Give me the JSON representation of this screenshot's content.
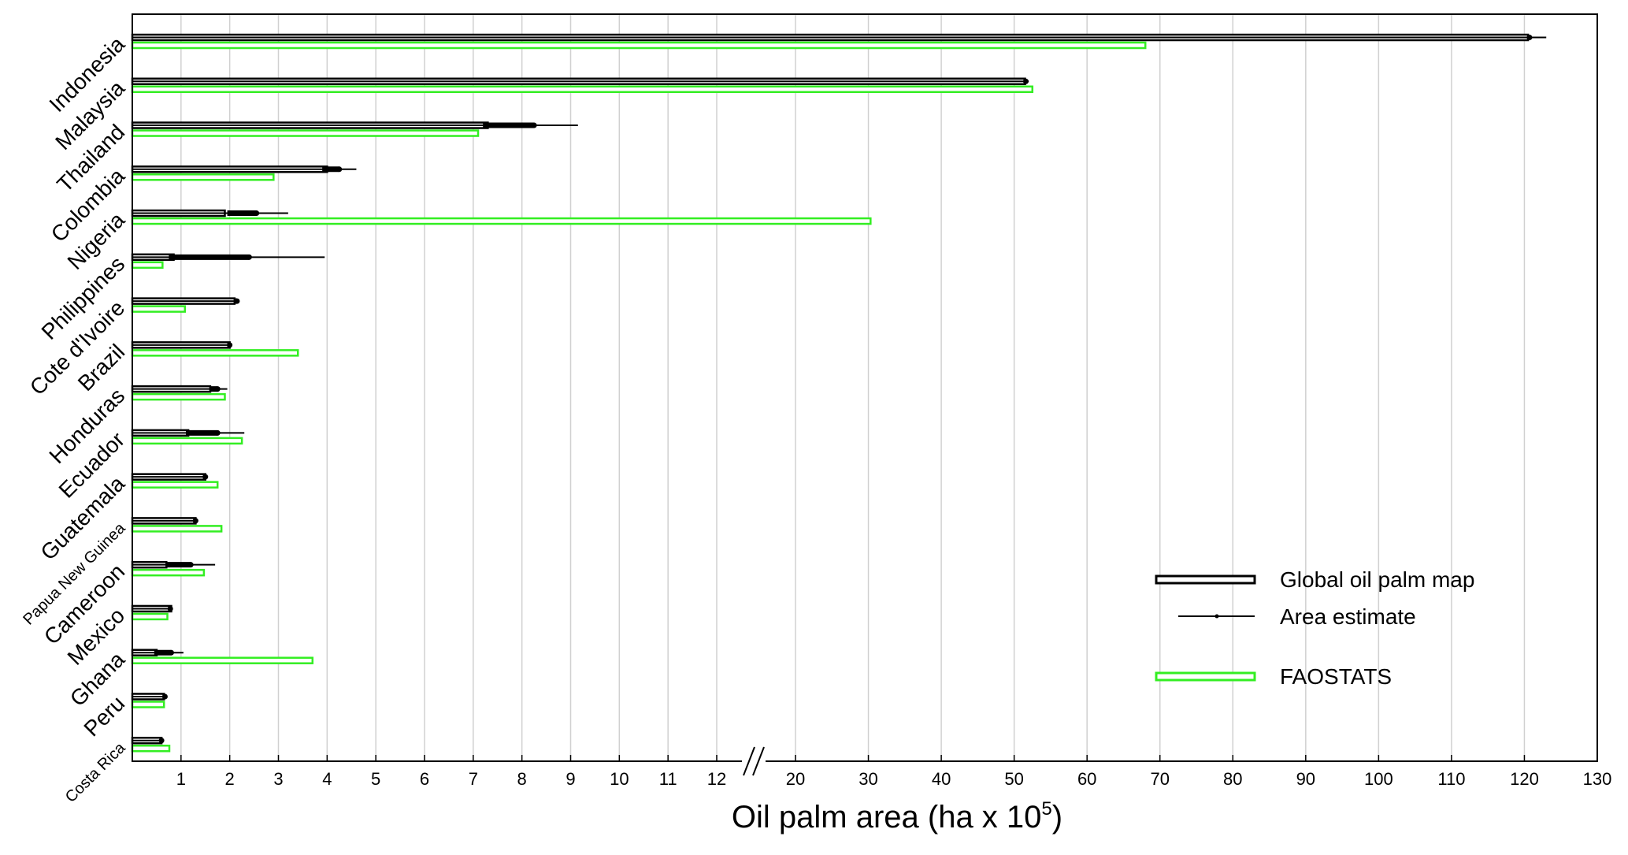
{
  "chart_data": {
    "type": "bar",
    "orientation": "horizontal",
    "xlabel_main": "Oil palm area (ha x 10",
    "xlabel_sup": "5",
    "xlabel_close": ")",
    "axis_break": true,
    "xticks_low": [
      "1",
      "2",
      "3",
      "4",
      "5",
      "6",
      "7",
      "8",
      "9",
      "10",
      "11",
      "12"
    ],
    "xticks_high": [
      "20",
      "30",
      "40",
      "50",
      "60",
      "70",
      "80",
      "90",
      "100",
      "110",
      "120",
      "130"
    ],
    "grid": "vertical",
    "legend_position": "right",
    "categories": [
      "Indonesia",
      "Malaysia",
      "Thailand",
      "Colombia",
      "Nigeria",
      "Philippines",
      "Cote d'Ivoire",
      "Brazil",
      "Honduras",
      "Ecuador",
      "Guatemala",
      "Papua New Guinea",
      "Cameroon",
      "Mexico",
      "Ghana",
      "Peru",
      "Costa Rica"
    ],
    "small_label_categories": [
      "Papua New Guinea",
      "Costa Rica"
    ],
    "series": [
      {
        "name": "Global oil palm map",
        "color": "#000000",
        "values": [
          120.5,
          51.5,
          7.3,
          4.0,
          1.9,
          0.85,
          2.1,
          2.0,
          1.6,
          1.15,
          1.5,
          1.3,
          0.7,
          0.8,
          0.5,
          0.65,
          0.6
        ]
      },
      {
        "name": "Area estimate",
        "color": "#000000",
        "values": [
          120.7,
          51.6,
          8.25,
          4.25,
          2.55,
          2.4,
          2.15,
          2.0,
          1.75,
          1.75,
          1.5,
          1.3,
          1.2,
          0.78,
          0.8,
          0.67,
          0.6
        ],
        "ci_low": [
          null,
          null,
          7.2,
          3.9,
          1.95,
          0.75,
          2.1,
          1.95,
          1.6,
          1.1,
          1.45,
          1.25,
          0.7,
          0.74,
          0.45,
          0.62,
          0.56
        ],
        "ci_high": [
          123.0,
          52.0,
          9.15,
          4.6,
          3.2,
          3.95,
          2.2,
          2.05,
          1.95,
          2.3,
          1.55,
          1.35,
          1.7,
          0.82,
          1.05,
          0.7,
          0.64
        ]
      },
      {
        "name": "FAOSTATS",
        "color": "#33ee22",
        "values": [
          68.0,
          52.5,
          7.1,
          2.9,
          30.3,
          0.62,
          1.08,
          3.4,
          1.9,
          2.25,
          1.75,
          1.83,
          1.47,
          0.72,
          3.7,
          0.65,
          0.76
        ]
      }
    ]
  }
}
